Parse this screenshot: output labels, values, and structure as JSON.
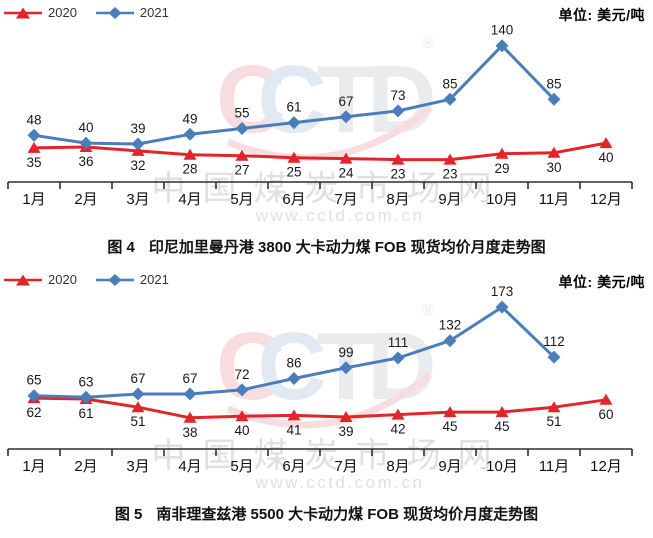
{
  "watermark": {
    "logo_text": "CCTD",
    "registered_mark": "®",
    "site_name": "中国煤炭市场网",
    "site_url": "www.cctd.com.cn"
  },
  "colors": {
    "series_2020": "#e2242b",
    "series_2021": "#4a7ebb",
    "axis": "#2e2e2e",
    "watermark_gray": "#cccccc"
  },
  "chart_data": [
    {
      "type": "line",
      "fig_label": "图 4",
      "title": "印尼加里曼丹港 3800 大卡动力煤 FOB 现货均价月度走势图",
      "unit_label": "单位: 美元/吨",
      "categories": [
        "1月",
        "2月",
        "3月",
        "4月",
        "5月",
        "6月",
        "7月",
        "8月",
        "9月",
        "10月",
        "11月",
        "12月"
      ],
      "series": [
        {
          "name": "2020",
          "color": "#e2242b",
          "marker": "triangle",
          "values": [
            35,
            36,
            32,
            28,
            27,
            25,
            24,
            23,
            23,
            29,
            30,
            40
          ]
        },
        {
          "name": "2021",
          "color": "#4a7ebb",
          "marker": "diamond",
          "values": [
            48,
            40,
            39,
            49,
            55,
            61,
            67,
            73,
            85,
            140,
            85,
            null
          ]
        }
      ],
      "ylim": [
        0,
        150
      ],
      "grid": false,
      "legend_position": "top-left"
    },
    {
      "type": "line",
      "fig_label": "图 5",
      "title": "南非理查兹港 5500 大卡动力煤 FOB 现货均价月度走势图",
      "unit_label": "单位: 美元/吨",
      "categories": [
        "1月",
        "2月",
        "3月",
        "4月",
        "5月",
        "6月",
        "7月",
        "8月",
        "9月",
        "10月",
        "11月",
        "12月"
      ],
      "series": [
        {
          "name": "2020",
          "color": "#e2242b",
          "marker": "triangle",
          "values": [
            62,
            61,
            51,
            38,
            40,
            41,
            39,
            42,
            45,
            45,
            51,
            60
          ]
        },
        {
          "name": "2021",
          "color": "#4a7ebb",
          "marker": "diamond",
          "values": [
            65,
            63,
            67,
            67,
            72,
            86,
            99,
            111,
            132,
            173,
            112,
            null
          ]
        }
      ],
      "ylim": [
        0,
        178
      ],
      "grid": false,
      "legend_position": "top-left"
    }
  ]
}
